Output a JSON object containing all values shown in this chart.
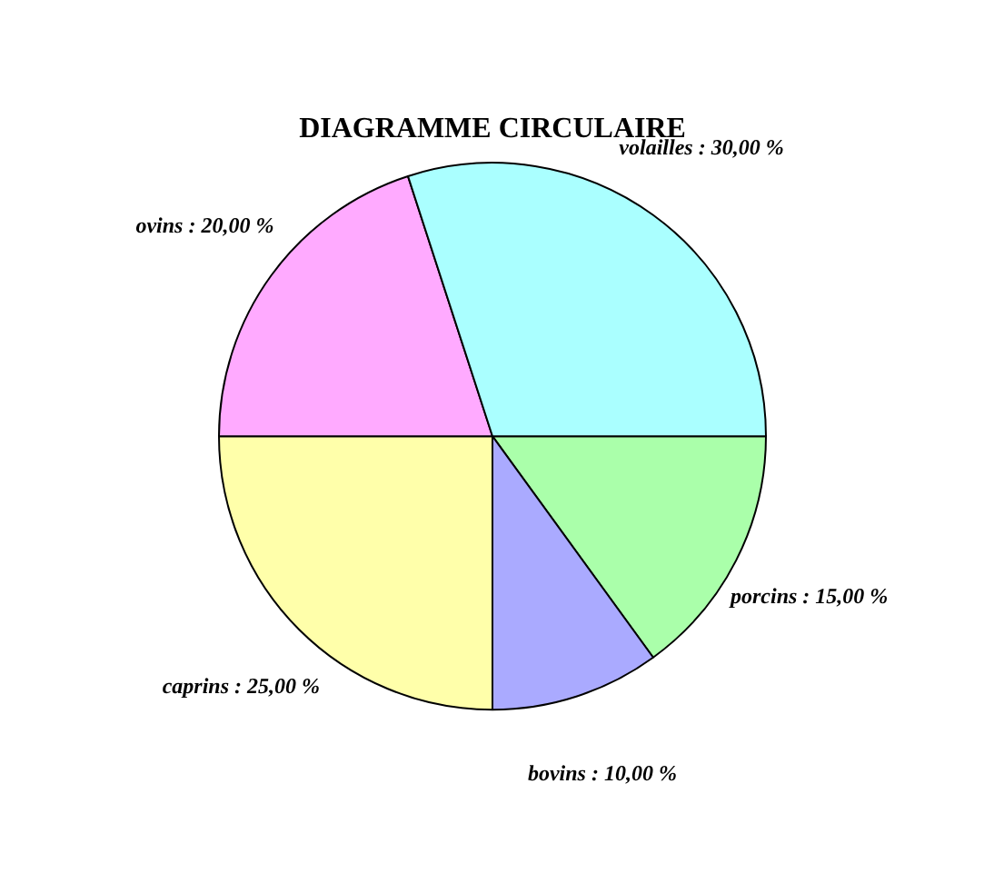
{
  "chart_data": {
    "type": "pie",
    "title": "DIAGRAMME CIRCULAIRE",
    "categories": [
      "porcins",
      "bovins",
      "caprins",
      "ovins",
      "volailles"
    ],
    "values": [
      15,
      10,
      25,
      20,
      30
    ],
    "colors": [
      "#aaffaa",
      "#aaaaff",
      "#ffffaa",
      "#ffaaff",
      "#aaffff"
    ],
    "value_labels": [
      "15,00 %",
      "10,00 %",
      "25,00 %",
      "20,00 %",
      "30,00 %"
    ],
    "legend": false
  }
}
